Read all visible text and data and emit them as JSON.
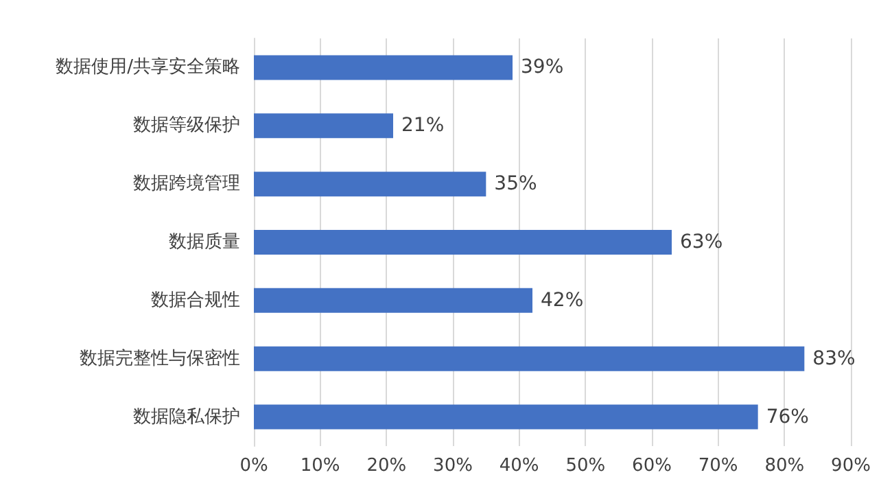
{
  "chart_data": {
    "type": "bar",
    "orientation": "horizontal",
    "categories": [
      "数据使用/共享安全策略",
      "数据等级保护",
      "数据跨境管理",
      "数据质量",
      "数据合规性",
      "数据完整性与保密性",
      "数据隐私保护"
    ],
    "values": [
      39,
      21,
      35,
      63,
      42,
      83,
      76
    ],
    "value_labels": [
      "39%",
      "21%",
      "35%",
      "63%",
      "42%",
      "83%",
      "76%"
    ],
    "color": "#4472c4",
    "xlim": [
      0,
      90
    ],
    "xticks": [
      {
        "value": 0,
        "label": "0%"
      },
      {
        "value": 10,
        "label": "10%"
      },
      {
        "value": 20,
        "label": "20%"
      },
      {
        "value": 30,
        "label": "30%"
      },
      {
        "value": 40,
        "label": "40%"
      },
      {
        "value": 50,
        "label": "50%"
      },
      {
        "value": 60,
        "label": "60%"
      },
      {
        "value": 70,
        "label": "70%"
      },
      {
        "value": 80,
        "label": "80%"
      },
      {
        "value": 90,
        "label": "90%"
      }
    ],
    "grid": "x"
  }
}
